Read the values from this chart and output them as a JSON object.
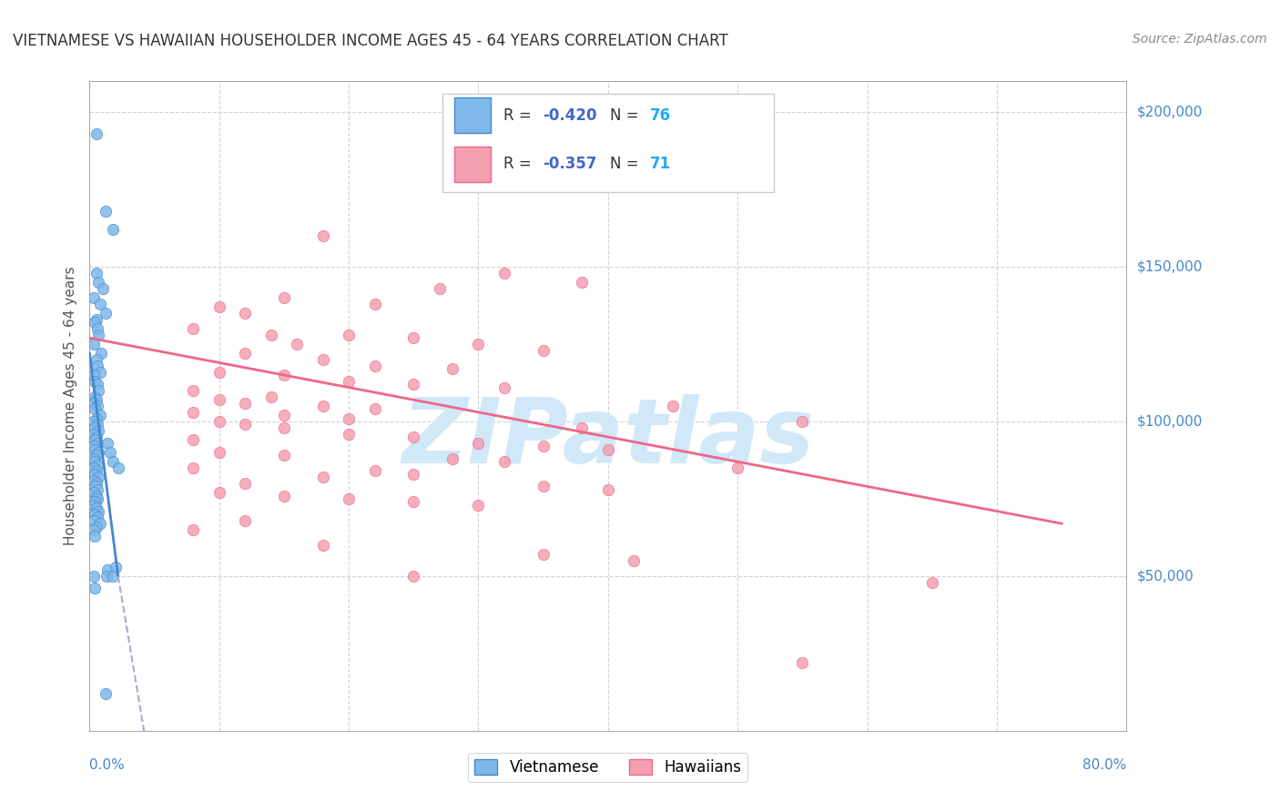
{
  "title": "VIETNAMESE VS HAWAIIAN HOUSEHOLDER INCOME AGES 45 - 64 YEARS CORRELATION CHART",
  "source": "Source: ZipAtlas.com",
  "ylabel": "Householder Income Ages 45 - 64 years",
  "xmin": 0.0,
  "xmax": 0.8,
  "ymin": 0,
  "ymax": 210000,
  "yticks": [
    0,
    50000,
    100000,
    150000,
    200000
  ],
  "ytick_labels": [
    "",
    "$50,000",
    "$100,000",
    "$150,000",
    "$200,000"
  ],
  "xticks": [
    0.0,
    0.1,
    0.2,
    0.3,
    0.4,
    0.5,
    0.6,
    0.7,
    0.8
  ],
  "color_viet": "#7EB8E8",
  "color_hawaii": "#F4A0B0",
  "color_viet_line": "#4488CC",
  "color_hawaii_line": "#EE6688",
  "watermark": "ZIPatlas",
  "watermark_color": "#D0E8F8",
  "background_color": "#FFFFFF",
  "grid_color": "#CCCCCC",
  "viet_scatter": [
    [
      0.005,
      193000
    ],
    [
      0.012,
      168000
    ],
    [
      0.018,
      162000
    ],
    [
      0.005,
      148000
    ],
    [
      0.007,
      145000
    ],
    [
      0.01,
      143000
    ],
    [
      0.003,
      140000
    ],
    [
      0.008,
      138000
    ],
    [
      0.012,
      135000
    ],
    [
      0.005,
      133000
    ],
    [
      0.004,
      132000
    ],
    [
      0.006,
      130000
    ],
    [
      0.007,
      128000
    ],
    [
      0.003,
      125000
    ],
    [
      0.009,
      122000
    ],
    [
      0.005,
      120000
    ],
    [
      0.006,
      118000
    ],
    [
      0.008,
      116000
    ],
    [
      0.003,
      115000
    ],
    [
      0.004,
      113000
    ],
    [
      0.006,
      112000
    ],
    [
      0.007,
      110000
    ],
    [
      0.004,
      108000
    ],
    [
      0.005,
      107000
    ],
    [
      0.003,
      106000
    ],
    [
      0.006,
      105000
    ],
    [
      0.004,
      104000
    ],
    [
      0.008,
      102000
    ],
    [
      0.005,
      101000
    ],
    [
      0.003,
      100000
    ],
    [
      0.006,
      99000
    ],
    [
      0.004,
      98000
    ],
    [
      0.007,
      97000
    ],
    [
      0.003,
      96000
    ],
    [
      0.005,
      95000
    ],
    [
      0.004,
      94000
    ],
    [
      0.006,
      93000
    ],
    [
      0.003,
      92000
    ],
    [
      0.004,
      91000
    ],
    [
      0.007,
      90000
    ],
    [
      0.005,
      89000
    ],
    [
      0.003,
      88000
    ],
    [
      0.004,
      87000
    ],
    [
      0.006,
      86000
    ],
    [
      0.003,
      85000
    ],
    [
      0.005,
      84000
    ],
    [
      0.004,
      83000
    ],
    [
      0.007,
      82000
    ],
    [
      0.003,
      81000
    ],
    [
      0.005,
      80000
    ],
    [
      0.004,
      79000
    ],
    [
      0.006,
      78000
    ],
    [
      0.003,
      77000
    ],
    [
      0.005,
      76000
    ],
    [
      0.006,
      75000
    ],
    [
      0.004,
      74000
    ],
    [
      0.003,
      73000
    ],
    [
      0.005,
      72000
    ],
    [
      0.007,
      71000
    ],
    [
      0.004,
      70000
    ],
    [
      0.006,
      69000
    ],
    [
      0.003,
      68000
    ],
    [
      0.008,
      67000
    ],
    [
      0.005,
      66000
    ],
    [
      0.003,
      65000
    ],
    [
      0.004,
      63000
    ],
    [
      0.014,
      93000
    ],
    [
      0.016,
      90000
    ],
    [
      0.018,
      87000
    ],
    [
      0.022,
      85000
    ],
    [
      0.014,
      52000
    ],
    [
      0.013,
      50000
    ],
    [
      0.003,
      50000
    ],
    [
      0.004,
      46000
    ],
    [
      0.02,
      53000
    ],
    [
      0.018,
      50000
    ],
    [
      0.012,
      12000
    ]
  ],
  "hawaii_scatter": [
    [
      0.18,
      160000
    ],
    [
      0.32,
      148000
    ],
    [
      0.38,
      145000
    ],
    [
      0.27,
      143000
    ],
    [
      0.15,
      140000
    ],
    [
      0.22,
      138000
    ],
    [
      0.1,
      137000
    ],
    [
      0.12,
      135000
    ],
    [
      0.08,
      130000
    ],
    [
      0.14,
      128000
    ],
    [
      0.2,
      128000
    ],
    [
      0.25,
      127000
    ],
    [
      0.16,
      125000
    ],
    [
      0.3,
      125000
    ],
    [
      0.35,
      123000
    ],
    [
      0.12,
      122000
    ],
    [
      0.18,
      120000
    ],
    [
      0.22,
      118000
    ],
    [
      0.28,
      117000
    ],
    [
      0.1,
      116000
    ],
    [
      0.15,
      115000
    ],
    [
      0.2,
      113000
    ],
    [
      0.25,
      112000
    ],
    [
      0.32,
      111000
    ],
    [
      0.08,
      110000
    ],
    [
      0.14,
      108000
    ],
    [
      0.1,
      107000
    ],
    [
      0.12,
      106000
    ],
    [
      0.18,
      105000
    ],
    [
      0.45,
      105000
    ],
    [
      0.22,
      104000
    ],
    [
      0.08,
      103000
    ],
    [
      0.15,
      102000
    ],
    [
      0.2,
      101000
    ],
    [
      0.1,
      100000
    ],
    [
      0.12,
      99000
    ],
    [
      0.15,
      98000
    ],
    [
      0.38,
      98000
    ],
    [
      0.2,
      96000
    ],
    [
      0.25,
      95000
    ],
    [
      0.08,
      94000
    ],
    [
      0.3,
      93000
    ],
    [
      0.35,
      92000
    ],
    [
      0.4,
      91000
    ],
    [
      0.1,
      90000
    ],
    [
      0.15,
      89000
    ],
    [
      0.28,
      88000
    ],
    [
      0.32,
      87000
    ],
    [
      0.08,
      85000
    ],
    [
      0.22,
      84000
    ],
    [
      0.25,
      83000
    ],
    [
      0.18,
      82000
    ],
    [
      0.12,
      80000
    ],
    [
      0.35,
      79000
    ],
    [
      0.4,
      78000
    ],
    [
      0.1,
      77000
    ],
    [
      0.15,
      76000
    ],
    [
      0.2,
      75000
    ],
    [
      0.25,
      74000
    ],
    [
      0.55,
      100000
    ],
    [
      0.3,
      73000
    ],
    [
      0.12,
      68000
    ],
    [
      0.5,
      85000
    ],
    [
      0.08,
      65000
    ],
    [
      0.18,
      60000
    ],
    [
      0.35,
      57000
    ],
    [
      0.42,
      55000
    ],
    [
      0.25,
      50000
    ],
    [
      0.65,
      48000
    ],
    [
      0.55,
      22000
    ]
  ],
  "viet_line": [
    [
      0.0,
      122000
    ],
    [
      0.022,
      50000
    ]
  ],
  "viet_line_dashed": [
    [
      0.022,
      50000
    ],
    [
      0.046,
      -10000
    ]
  ],
  "hawaii_line": [
    [
      0.0,
      127000
    ],
    [
      0.75,
      67000
    ]
  ]
}
